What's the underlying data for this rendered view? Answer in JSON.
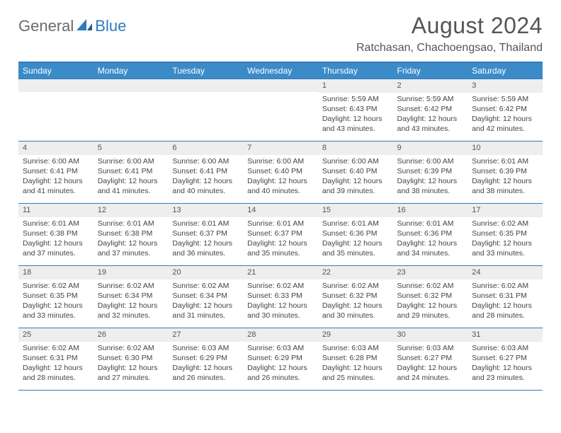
{
  "logo": {
    "part1": "General",
    "part2": "Blue"
  },
  "title": "August 2024",
  "location": "Ratchasan, Chachoengsao, Thailand",
  "headers": [
    "Sunday",
    "Monday",
    "Tuesday",
    "Wednesday",
    "Thursday",
    "Friday",
    "Saturday"
  ],
  "colors": {
    "header_bg": "#3b8bc8",
    "accent": "#2f7abf",
    "daynum_bg": "#eeeeee",
    "text": "#444444",
    "title": "#555555"
  },
  "weeks": [
    [
      {
        "n": "",
        "sr": "",
        "ss": "",
        "dl": ""
      },
      {
        "n": "",
        "sr": "",
        "ss": "",
        "dl": ""
      },
      {
        "n": "",
        "sr": "",
        "ss": "",
        "dl": ""
      },
      {
        "n": "",
        "sr": "",
        "ss": "",
        "dl": ""
      },
      {
        "n": "1",
        "sr": "Sunrise: 5:59 AM",
        "ss": "Sunset: 6:43 PM",
        "dl": "Daylight: 12 hours and 43 minutes."
      },
      {
        "n": "2",
        "sr": "Sunrise: 5:59 AM",
        "ss": "Sunset: 6:42 PM",
        "dl": "Daylight: 12 hours and 43 minutes."
      },
      {
        "n": "3",
        "sr": "Sunrise: 5:59 AM",
        "ss": "Sunset: 6:42 PM",
        "dl": "Daylight: 12 hours and 42 minutes."
      }
    ],
    [
      {
        "n": "4",
        "sr": "Sunrise: 6:00 AM",
        "ss": "Sunset: 6:41 PM",
        "dl": "Daylight: 12 hours and 41 minutes."
      },
      {
        "n": "5",
        "sr": "Sunrise: 6:00 AM",
        "ss": "Sunset: 6:41 PM",
        "dl": "Daylight: 12 hours and 41 minutes."
      },
      {
        "n": "6",
        "sr": "Sunrise: 6:00 AM",
        "ss": "Sunset: 6:41 PM",
        "dl": "Daylight: 12 hours and 40 minutes."
      },
      {
        "n": "7",
        "sr": "Sunrise: 6:00 AM",
        "ss": "Sunset: 6:40 PM",
        "dl": "Daylight: 12 hours and 40 minutes."
      },
      {
        "n": "8",
        "sr": "Sunrise: 6:00 AM",
        "ss": "Sunset: 6:40 PM",
        "dl": "Daylight: 12 hours and 39 minutes."
      },
      {
        "n": "9",
        "sr": "Sunrise: 6:00 AM",
        "ss": "Sunset: 6:39 PM",
        "dl": "Daylight: 12 hours and 38 minutes."
      },
      {
        "n": "10",
        "sr": "Sunrise: 6:01 AM",
        "ss": "Sunset: 6:39 PM",
        "dl": "Daylight: 12 hours and 38 minutes."
      }
    ],
    [
      {
        "n": "11",
        "sr": "Sunrise: 6:01 AM",
        "ss": "Sunset: 6:38 PM",
        "dl": "Daylight: 12 hours and 37 minutes."
      },
      {
        "n": "12",
        "sr": "Sunrise: 6:01 AM",
        "ss": "Sunset: 6:38 PM",
        "dl": "Daylight: 12 hours and 37 minutes."
      },
      {
        "n": "13",
        "sr": "Sunrise: 6:01 AM",
        "ss": "Sunset: 6:37 PM",
        "dl": "Daylight: 12 hours and 36 minutes."
      },
      {
        "n": "14",
        "sr": "Sunrise: 6:01 AM",
        "ss": "Sunset: 6:37 PM",
        "dl": "Daylight: 12 hours and 35 minutes."
      },
      {
        "n": "15",
        "sr": "Sunrise: 6:01 AM",
        "ss": "Sunset: 6:36 PM",
        "dl": "Daylight: 12 hours and 35 minutes."
      },
      {
        "n": "16",
        "sr": "Sunrise: 6:01 AM",
        "ss": "Sunset: 6:36 PM",
        "dl": "Daylight: 12 hours and 34 minutes."
      },
      {
        "n": "17",
        "sr": "Sunrise: 6:02 AM",
        "ss": "Sunset: 6:35 PM",
        "dl": "Daylight: 12 hours and 33 minutes."
      }
    ],
    [
      {
        "n": "18",
        "sr": "Sunrise: 6:02 AM",
        "ss": "Sunset: 6:35 PM",
        "dl": "Daylight: 12 hours and 33 minutes."
      },
      {
        "n": "19",
        "sr": "Sunrise: 6:02 AM",
        "ss": "Sunset: 6:34 PM",
        "dl": "Daylight: 12 hours and 32 minutes."
      },
      {
        "n": "20",
        "sr": "Sunrise: 6:02 AM",
        "ss": "Sunset: 6:34 PM",
        "dl": "Daylight: 12 hours and 31 minutes."
      },
      {
        "n": "21",
        "sr": "Sunrise: 6:02 AM",
        "ss": "Sunset: 6:33 PM",
        "dl": "Daylight: 12 hours and 30 minutes."
      },
      {
        "n": "22",
        "sr": "Sunrise: 6:02 AM",
        "ss": "Sunset: 6:32 PM",
        "dl": "Daylight: 12 hours and 30 minutes."
      },
      {
        "n": "23",
        "sr": "Sunrise: 6:02 AM",
        "ss": "Sunset: 6:32 PM",
        "dl": "Daylight: 12 hours and 29 minutes."
      },
      {
        "n": "24",
        "sr": "Sunrise: 6:02 AM",
        "ss": "Sunset: 6:31 PM",
        "dl": "Daylight: 12 hours and 28 minutes."
      }
    ],
    [
      {
        "n": "25",
        "sr": "Sunrise: 6:02 AM",
        "ss": "Sunset: 6:31 PM",
        "dl": "Daylight: 12 hours and 28 minutes."
      },
      {
        "n": "26",
        "sr": "Sunrise: 6:02 AM",
        "ss": "Sunset: 6:30 PM",
        "dl": "Daylight: 12 hours and 27 minutes."
      },
      {
        "n": "27",
        "sr": "Sunrise: 6:03 AM",
        "ss": "Sunset: 6:29 PM",
        "dl": "Daylight: 12 hours and 26 minutes."
      },
      {
        "n": "28",
        "sr": "Sunrise: 6:03 AM",
        "ss": "Sunset: 6:29 PM",
        "dl": "Daylight: 12 hours and 26 minutes."
      },
      {
        "n": "29",
        "sr": "Sunrise: 6:03 AM",
        "ss": "Sunset: 6:28 PM",
        "dl": "Daylight: 12 hours and 25 minutes."
      },
      {
        "n": "30",
        "sr": "Sunrise: 6:03 AM",
        "ss": "Sunset: 6:27 PM",
        "dl": "Daylight: 12 hours and 24 minutes."
      },
      {
        "n": "31",
        "sr": "Sunrise: 6:03 AM",
        "ss": "Sunset: 6:27 PM",
        "dl": "Daylight: 12 hours and 23 minutes."
      }
    ]
  ]
}
